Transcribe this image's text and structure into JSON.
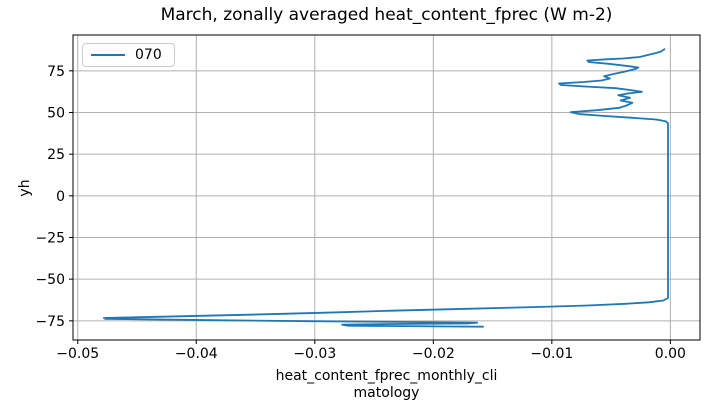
{
  "title": "March, zonally averaged heat_content_fprec (W m-2)",
  "legend": {
    "label": "070",
    "line_color": "#1f77b4"
  },
  "axes": {
    "ylabel": "yh",
    "xlabel_line1": "heat_content_fprec_monthly_cli",
    "xlabel_line2": "matology"
  },
  "colors": {
    "line": "#1f77b4",
    "grid": "#b0b0b0",
    "spine": "#000000",
    "tick_text": "#000000",
    "background": "#ffffff"
  },
  "chart_data": {
    "type": "line",
    "title": "March, zonally averaged heat_content_fprec (W m-2)",
    "xlabel": "heat_content_fprec_monthly_climatology",
    "ylabel": "yh",
    "grid": true,
    "grid_color": "#b0b0b0",
    "legend_position": "upper left",
    "xlim": [
      -0.0504,
      0.0025
    ],
    "ylim": [
      -86.5,
      96.5
    ],
    "xticks": {
      "values": [
        -0.05,
        -0.04,
        -0.03,
        -0.02,
        -0.01,
        0.0
      ],
      "labels": [
        "−0.05",
        "−0.04",
        "−0.03",
        "−0.02",
        "−0.01",
        "0.00"
      ]
    },
    "yticks": {
      "values": [
        75,
        50,
        25,
        0,
        -25,
        -50,
        -75
      ],
      "labels": [
        "75",
        "50",
        "25",
        "0",
        "−25",
        "−50",
        "−75"
      ]
    },
    "series": [
      {
        "name": "070",
        "color": "#1f77b4",
        "points": [
          [
            -0.0158,
            -78.5
          ],
          [
            -0.0185,
            -78.4
          ],
          [
            -0.024,
            -78.1
          ],
          [
            -0.0272,
            -77.9
          ],
          [
            -0.0277,
            -77.3
          ],
          [
            -0.0235,
            -76.9
          ],
          [
            -0.0172,
            -76.6
          ],
          [
            -0.0163,
            -76.1
          ],
          [
            -0.022,
            -75.7
          ],
          [
            -0.0305,
            -75.2
          ],
          [
            -0.0385,
            -74.6
          ],
          [
            -0.0445,
            -74.1
          ],
          [
            -0.0477,
            -73.8
          ],
          [
            -0.0468,
            -73.6
          ],
          [
            -0.0478,
            -73.3
          ],
          [
            -0.0452,
            -72.9
          ],
          [
            -0.041,
            -72.2
          ],
          [
            -0.0355,
            -71.3
          ],
          [
            -0.0295,
            -70.2
          ],
          [
            -0.0235,
            -68.9
          ],
          [
            -0.0172,
            -67.8
          ],
          [
            -0.0112,
            -66.7
          ],
          [
            -0.007,
            -65.8
          ],
          [
            -0.0038,
            -64.8
          ],
          [
            -0.0018,
            -63.9
          ],
          [
            -0.0006,
            -62.8
          ],
          [
            -0.0002,
            -61.3
          ],
          [
            -0.0002,
            -40.0
          ],
          [
            -0.0002,
            -10.0
          ],
          [
            -0.0002,
            20.0
          ],
          [
            -0.0002,
            43.5
          ],
          [
            -0.0004,
            44.8
          ],
          [
            -0.0012,
            45.8
          ],
          [
            -0.0032,
            46.8
          ],
          [
            -0.0055,
            47.9
          ],
          [
            -0.0076,
            49.0
          ],
          [
            -0.0084,
            50.2
          ],
          [
            -0.0062,
            51.4
          ],
          [
            -0.0043,
            52.8
          ],
          [
            -0.0037,
            54.2
          ],
          [
            -0.0032,
            55.8
          ],
          [
            -0.0042,
            57.2
          ],
          [
            -0.0034,
            58.8
          ],
          [
            -0.0044,
            60.3
          ],
          [
            -0.0037,
            61.3
          ],
          [
            -0.0024,
            62.4
          ],
          [
            -0.0034,
            63.5
          ],
          [
            -0.0046,
            64.6
          ],
          [
            -0.0072,
            65.6
          ],
          [
            -0.0092,
            66.5
          ],
          [
            -0.0094,
            67.4
          ],
          [
            -0.0073,
            68.3
          ],
          [
            -0.0058,
            69.2
          ],
          [
            -0.0051,
            70.4
          ],
          [
            -0.0056,
            71.8
          ],
          [
            -0.0047,
            73.2
          ],
          [
            -0.0038,
            74.6
          ],
          [
            -0.0029,
            76.2
          ],
          [
            -0.0027,
            77.0
          ],
          [
            -0.0035,
            77.8
          ],
          [
            -0.0052,
            79.2
          ],
          [
            -0.0069,
            80.3
          ],
          [
            -0.007,
            81.2
          ],
          [
            -0.0054,
            81.9
          ],
          [
            -0.004,
            82.4
          ],
          [
            -0.0026,
            83.3
          ],
          [
            -0.002,
            84.3
          ],
          [
            -0.0013,
            85.5
          ],
          [
            -0.0008,
            86.6
          ],
          [
            -0.0005,
            88.0
          ]
        ]
      }
    ]
  }
}
